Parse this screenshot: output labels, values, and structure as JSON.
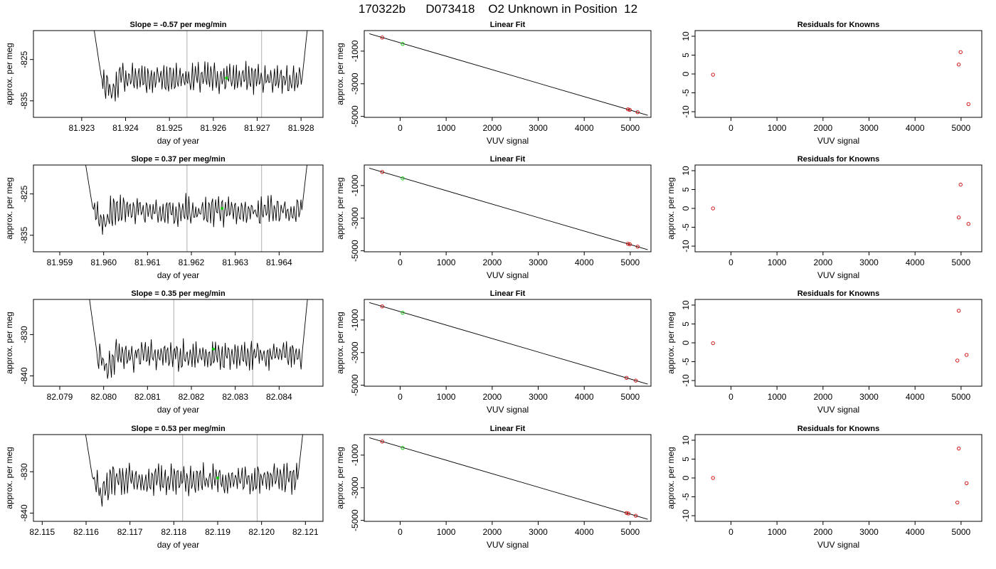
{
  "figure": {
    "title": "170322b      D073418    O2 Unknown in Position  12"
  },
  "chart_data": [
    {
      "type": "line",
      "panel": "time-series",
      "row": 1,
      "title": "Slope =  -0.57  per meg/min",
      "xlabel": "day of year",
      "ylabel": "approx. per meg",
      "xlim": [
        81.9219,
        81.9285
      ],
      "ylim": [
        -839,
        -818
      ],
      "xticks": [
        81.923,
        81.924,
        81.925,
        81.926,
        81.927,
        81.928
      ],
      "xtick_labels": [
        "81.923",
        "81.924",
        "81.925",
        "81.926",
        "81.927",
        "81.928"
      ],
      "yticks": [
        -825,
        -835
      ],
      "ytick_labels": [
        "-825",
        "-835"
      ],
      "vlines": [
        81.9254,
        81.9271
      ],
      "series_xrange": [
        81.9232,
        81.9282
      ],
      "series_mean": -829.5,
      "marker": {
        "x": 81.9263,
        "y": -829.5,
        "color": "#00cc00"
      },
      "line_color": "#000000",
      "vline_color": "#bbbbbb"
    },
    {
      "type": "scatter",
      "panel": "linear-fit",
      "row": 1,
      "title": "Linear Fit",
      "xlabel": "VUV signal",
      "ylabel": "approx. per meg",
      "xlim": [
        -780,
        5450
      ],
      "ylim": [
        -5060,
        260
      ],
      "xticks": [
        0,
        1000,
        2000,
        3000,
        4000,
        5000
      ],
      "xtick_labels": [
        "0",
        "1000",
        "2000",
        "3000",
        "4000",
        "5000"
      ],
      "yticks": [
        -1000,
        -3000,
        -5000
      ],
      "ytick_labels": [
        "-1000",
        "-3000",
        "-5000"
      ],
      "fit_line": {
        "x": [
          -670,
          5380
        ],
        "y": [
          67,
          -4930
        ]
      },
      "points": [
        {
          "x": -390,
          "y": -167,
          "color": "#cc0000"
        },
        {
          "x": 4950,
          "y": -4570,
          "color": "#cc0000"
        },
        {
          "x": 4990,
          "y": -4600,
          "color": "#cc0000"
        },
        {
          "x": 5160,
          "y": -4745,
          "color": "#cc0000"
        },
        {
          "x": 55,
          "y": -560,
          "color": "#00cc00"
        }
      ]
    },
    {
      "type": "scatter",
      "panel": "residuals",
      "row": 1,
      "title": "Residuals for Knowns",
      "xlabel": "VUV signal",
      "ylabel": "",
      "xlim": [
        -780,
        5450
      ],
      "ylim": [
        -11.5,
        11.5
      ],
      "xticks": [
        0,
        1000,
        2000,
        3000,
        4000,
        5000
      ],
      "xtick_labels": [
        "0",
        "1000",
        "2000",
        "3000",
        "4000",
        "5000"
      ],
      "yticks": [
        10,
        5,
        0,
        -5,
        -10
      ],
      "ytick_labels": [
        "10",
        "5",
        "0",
        "-5",
        "-10"
      ],
      "points": [
        {
          "x": -390,
          "y": -0.2
        },
        {
          "x": 4950,
          "y": 2.5
        },
        {
          "x": 4990,
          "y": 5.8
        },
        {
          "x": 5160,
          "y": -8.0
        }
      ]
    },
    {
      "type": "line",
      "panel": "time-series",
      "row": 2,
      "title": "Slope =  0.37  per meg/min",
      "xlabel": "day of year",
      "ylabel": "approx. per meg",
      "xlim": [
        81.9584,
        81.965
      ],
      "ylim": [
        -839,
        -818
      ],
      "xticks": [
        81.959,
        81.96,
        81.961,
        81.962,
        81.963,
        81.964
      ],
      "xtick_labels": [
        "81.959",
        "81.960",
        "81.961",
        "81.962",
        "81.963",
        "81.964"
      ],
      "yticks": [
        -825,
        -835
      ],
      "ytick_labels": [
        "-825",
        "-835"
      ],
      "vlines": [
        81.9619,
        81.9636
      ],
      "series_xrange": [
        81.9595,
        81.9647
      ],
      "series_mean": -829,
      "marker": {
        "x": 81.9627,
        "y": -828.5,
        "color": "#00cc00"
      },
      "line_color": "#000000",
      "vline_color": "#bbbbbb"
    },
    {
      "type": "scatter",
      "panel": "linear-fit",
      "row": 2,
      "title": "Linear Fit",
      "xlabel": "VUV signal",
      "ylabel": "approx. per meg",
      "xlim": [
        -780,
        5450
      ],
      "ylim": [
        -5060,
        260
      ],
      "xticks": [
        0,
        1000,
        2000,
        3000,
        4000,
        5000
      ],
      "xtick_labels": [
        "0",
        "1000",
        "2000",
        "3000",
        "4000",
        "5000"
      ],
      "yticks": [
        -1000,
        -3000,
        -5000
      ],
      "ytick_labels": [
        "-1000",
        "-3000",
        "-5000"
      ],
      "fit_line": {
        "x": [
          -670,
          5380
        ],
        "y": [
          67,
          -4930
        ]
      },
      "points": [
        {
          "x": -390,
          "y": -167,
          "color": "#cc0000"
        },
        {
          "x": 4950,
          "y": -4570,
          "color": "#cc0000"
        },
        {
          "x": 4990,
          "y": -4600,
          "color": "#cc0000"
        },
        {
          "x": 5160,
          "y": -4745,
          "color": "#cc0000"
        },
        {
          "x": 55,
          "y": -560,
          "color": "#00cc00"
        }
      ]
    },
    {
      "type": "scatter",
      "panel": "residuals",
      "row": 2,
      "title": "Residuals for Knowns",
      "xlabel": "VUV signal",
      "ylabel": "approx. per meg",
      "xlim": [
        -780,
        5450
      ],
      "ylim": [
        -11.5,
        11.5
      ],
      "xticks": [
        0,
        1000,
        2000,
        3000,
        4000,
        5000
      ],
      "xtick_labels": [
        "0",
        "1000",
        "2000",
        "3000",
        "4000",
        "5000"
      ],
      "yticks": [
        10,
        5,
        0,
        -5,
        -10
      ],
      "ytick_labels": [
        "10",
        "5",
        "0",
        "-5",
        "-10"
      ],
      "points": [
        {
          "x": -390,
          "y": 0.0
        },
        {
          "x": 4950,
          "y": -2.4
        },
        {
          "x": 4990,
          "y": 6.3
        },
        {
          "x": 5160,
          "y": -4.1
        }
      ]
    },
    {
      "type": "line",
      "panel": "time-series",
      "row": 3,
      "title": "Slope =  0.35  per meg/min",
      "xlabel": "day of year",
      "ylabel": "approx. per meg",
      "xlim": [
        82.0784,
        82.085
      ],
      "ylim": [
        -842.5,
        -821.5
      ],
      "xticks": [
        82.079,
        82.08,
        82.081,
        82.082,
        82.083,
        82.084
      ],
      "xtick_labels": [
        "82.079",
        "82.080",
        "82.081",
        "82.082",
        "82.083",
        "82.084"
      ],
      "yticks": [
        -830,
        -840
      ],
      "ytick_labels": [
        "-830",
        "-840"
      ],
      "vlines": [
        82.0816,
        82.0834
      ],
      "series_xrange": [
        82.0796,
        82.0847
      ],
      "series_mean": -835,
      "marker": {
        "x": 82.0825,
        "y": -833.5,
        "color": "#00cc00"
      },
      "line_color": "#000000",
      "vline_color": "#bbbbbb"
    },
    {
      "type": "scatter",
      "panel": "linear-fit",
      "row": 3,
      "title": "Linear Fit",
      "xlabel": "VUV signal",
      "ylabel": "approx. per meg",
      "xlim": [
        -780,
        5450
      ],
      "ylim": [
        -5060,
        260
      ],
      "xticks": [
        0,
        1000,
        2000,
        3000,
        4000,
        5000
      ],
      "xtick_labels": [
        "0",
        "1000",
        "2000",
        "3000",
        "4000",
        "5000"
      ],
      "yticks": [
        -1000,
        -3000,
        -5000
      ],
      "ytick_labels": [
        "-1000",
        "-3000",
        "-5000"
      ],
      "fit_line": {
        "x": [
          -670,
          5380
        ],
        "y": [
          67,
          -4930
        ]
      },
      "points": [
        {
          "x": -390,
          "y": -167,
          "color": "#cc0000"
        },
        {
          "x": 4920,
          "y": -4550,
          "color": "#cc0000"
        },
        {
          "x": 5120,
          "y": -4715,
          "color": "#cc0000"
        },
        {
          "x": 55,
          "y": -560,
          "color": "#00cc00"
        }
      ]
    },
    {
      "type": "scatter",
      "panel": "residuals",
      "row": 3,
      "title": "Residuals for Knowns",
      "xlabel": "VUV signal",
      "ylabel": "approx. per meg",
      "xlim": [
        -780,
        5450
      ],
      "ylim": [
        -11.5,
        11.5
      ],
      "xticks": [
        0,
        1000,
        2000,
        3000,
        4000,
        5000
      ],
      "xtick_labels": [
        "0",
        "1000",
        "2000",
        "3000",
        "4000",
        "5000"
      ],
      "yticks": [
        10,
        5,
        0,
        -5,
        -10
      ],
      "ytick_labels": [
        "10",
        "5",
        "0",
        "-5",
        "-10"
      ],
      "points": [
        {
          "x": -390,
          "y": -0.1
        },
        {
          "x": 4920,
          "y": -4.7
        },
        {
          "x": 4950,
          "y": 8.5
        },
        {
          "x": 5120,
          "y": -3.2
        }
      ]
    },
    {
      "type": "line",
      "panel": "time-series",
      "row": 4,
      "title": "Slope =  0.53  per meg/min",
      "xlabel": "day of year",
      "ylabel": "approx. per meg",
      "xlim": [
        82.1148,
        82.1214
      ],
      "ylim": [
        -842,
        -821
      ],
      "xticks": [
        82.115,
        82.116,
        82.117,
        82.118,
        82.119,
        82.12,
        82.121
      ],
      "xtick_labels": [
        "82.115",
        "82.116",
        "82.117",
        "82.118",
        "82.119",
        "82.120",
        "82.121"
      ],
      "yticks": [
        -830,
        -840
      ],
      "ytick_labels": [
        "-830",
        "-840"
      ],
      "vlines": [
        82.1182,
        82.1199
      ],
      "series_xrange": [
        82.1159,
        82.121
      ],
      "series_mean": -832,
      "marker": {
        "x": 82.119,
        "y": -831.5,
        "color": "#00cc00"
      },
      "line_color": "#000000",
      "vline_color": "#bbbbbb"
    },
    {
      "type": "scatter",
      "panel": "linear-fit",
      "row": 4,
      "title": "Linear Fit",
      "xlabel": "VUV signal",
      "ylabel": "approx. per meg",
      "xlim": [
        -780,
        5450
      ],
      "ylim": [
        -5060,
        260
      ],
      "xticks": [
        0,
        1000,
        2000,
        3000,
        4000,
        5000
      ],
      "xtick_labels": [
        "0",
        "1000",
        "2000",
        "3000",
        "4000",
        "5000"
      ],
      "yticks": [
        -1000,
        -3000,
        -5000
      ],
      "ytick_labels": [
        "-1000",
        "-3000",
        "-5000"
      ],
      "fit_line": {
        "x": [
          -670,
          5380
        ],
        "y": [
          67,
          -4930
        ]
      },
      "points": [
        {
          "x": -390,
          "y": -167,
          "color": "#cc0000"
        },
        {
          "x": 4920,
          "y": -4550,
          "color": "#cc0000"
        },
        {
          "x": 4960,
          "y": -4580,
          "color": "#cc0000"
        },
        {
          "x": 5120,
          "y": -4715,
          "color": "#cc0000"
        },
        {
          "x": 55,
          "y": -560,
          "color": "#00cc00"
        }
      ]
    },
    {
      "type": "scatter",
      "panel": "residuals",
      "row": 4,
      "title": "Residuals for Knowns",
      "xlabel": "VUV signal",
      "ylabel": "approx. per meg",
      "xlim": [
        -780,
        5450
      ],
      "ylim": [
        -11.5,
        11.5
      ],
      "xticks": [
        0,
        1000,
        2000,
        3000,
        4000,
        5000
      ],
      "xtick_labels": [
        "0",
        "1000",
        "2000",
        "3000",
        "4000",
        "5000"
      ],
      "yticks": [
        10,
        5,
        0,
        -5,
        -10
      ],
      "ytick_labels": [
        "10",
        "5",
        "0",
        "-5",
        "-10"
      ],
      "points": [
        {
          "x": -390,
          "y": 0.0
        },
        {
          "x": 4920,
          "y": -6.5
        },
        {
          "x": 4950,
          "y": 7.8
        },
        {
          "x": 5120,
          "y": -1.4
        }
      ]
    }
  ]
}
